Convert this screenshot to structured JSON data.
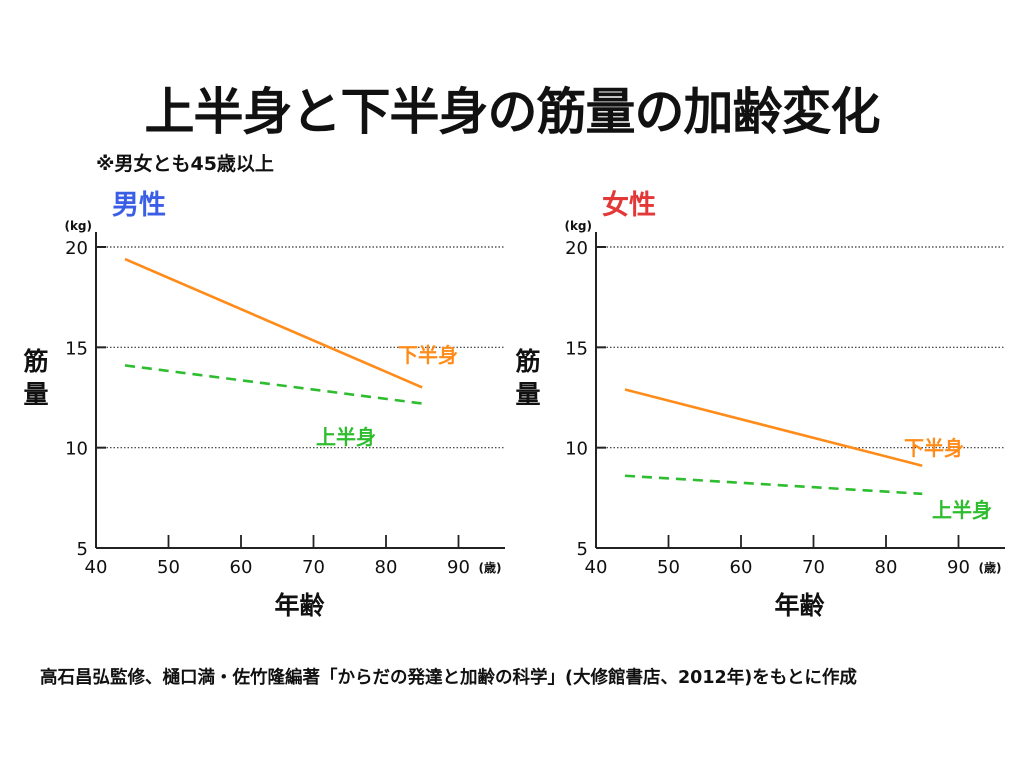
{
  "header": {
    "title": "上半身と下半身の筋量の加齢変化",
    "note": "※男女とも45歳以上"
  },
  "colors": {
    "male_title": "#3a5fe6",
    "female_title": "#e23838",
    "lower_body": "#ff8c1a",
    "upper_body": "#2ebd2e",
    "axis": "#222222",
    "grid": "#333333"
  },
  "chart_data": [
    {
      "type": "line",
      "panel_title": "男性",
      "xlabel": "年齢",
      "ylabel": "筋量",
      "x_unit": "(歳)",
      "y_unit": "(kg)",
      "xlim": [
        40,
        95
      ],
      "ylim": [
        5,
        20
      ],
      "x_ticks": [
        40,
        50,
        60,
        70,
        80,
        90
      ],
      "y_ticks": [
        5,
        10,
        15,
        20
      ],
      "grid": true,
      "series": [
        {
          "name": "下半身",
          "style": "solid",
          "x": [
            44,
            85
          ],
          "values": [
            19.4,
            13.0
          ]
        },
        {
          "name": "上半身",
          "style": "dashed",
          "x": [
            44,
            85
          ],
          "values": [
            14.1,
            12.2
          ]
        }
      ]
    },
    {
      "type": "line",
      "panel_title": "女性",
      "xlabel": "年齢",
      "ylabel": "筋量",
      "x_unit": "(歳)",
      "y_unit": "(kg)",
      "xlim": [
        40,
        95
      ],
      "ylim": [
        5,
        20
      ],
      "x_ticks": [
        40,
        50,
        60,
        70,
        80,
        90
      ],
      "y_ticks": [
        5,
        10,
        15,
        20
      ],
      "grid": true,
      "series": [
        {
          "name": "下半身",
          "style": "solid",
          "x": [
            44,
            85
          ],
          "values": [
            12.9,
            9.1
          ]
        },
        {
          "name": "上半身",
          "style": "dashed",
          "x": [
            44,
            85
          ],
          "values": [
            8.6,
            7.7
          ]
        }
      ]
    }
  ],
  "footer": {
    "source": "高石昌弘監修、樋口満・佐竹隆編著「からだの発達と加齢の科学」(大修館書店、2012年)をもとに作成"
  }
}
